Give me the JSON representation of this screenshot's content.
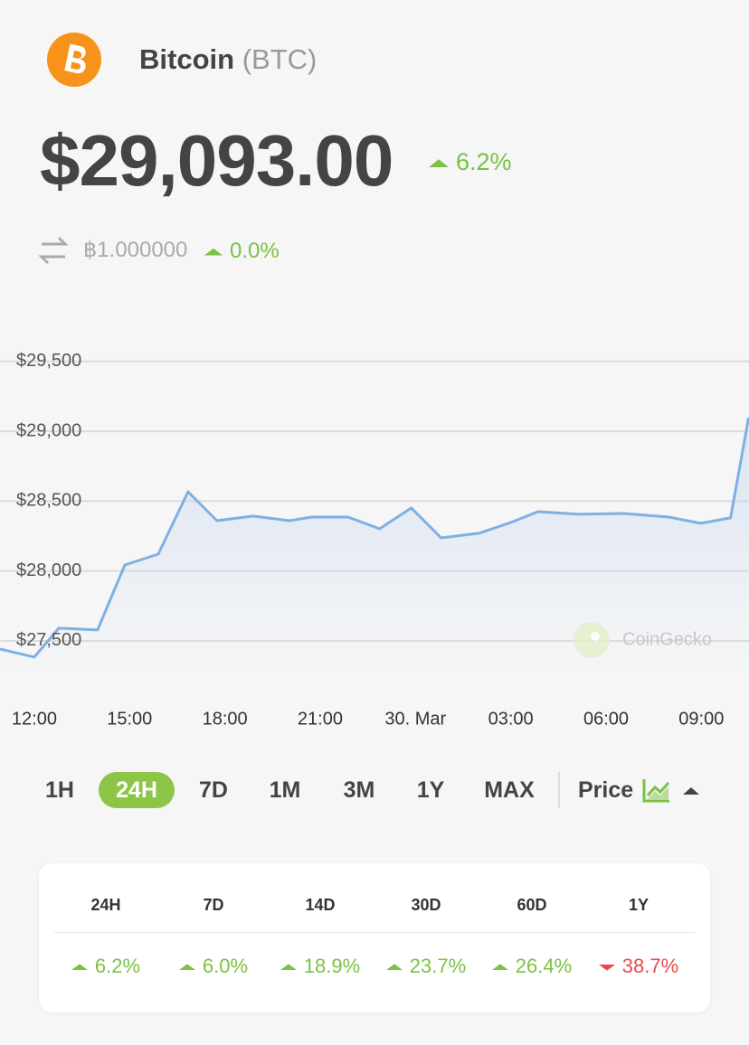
{
  "header": {
    "coin_name": "Bitcoin",
    "symbol": "(BTC)",
    "price": "$29,093.00",
    "price_change": "6.2%",
    "price_change_direction": "up",
    "btc_price": "฿1.000000",
    "btc_change": "0.0%",
    "btc_change_direction": "up"
  },
  "chart_data": {
    "type": "line",
    "x": [
      -1.08,
      0,
      0.77,
      1.99,
      2.85,
      3.9,
      4.84,
      5.75,
      6.89,
      8.03,
      8.74,
      9.88,
      10.87,
      11.87,
      12.81,
      14.0,
      15.0,
      15.86,
      17.14,
      18.56,
      19.98,
      20.98,
      21.92,
      22.49
    ],
    "values": [
      27442,
      27384,
      27591,
      27578,
      28043,
      28121,
      28567,
      28360,
      28393,
      28360,
      28386,
      28386,
      28302,
      28451,
      28237,
      28270,
      28347,
      28425,
      28406,
      28412,
      28386,
      28341,
      28380,
      29098
    ],
    "color": "#7fb0e3",
    "area": true,
    "xlim": [
      -1.08,
      22.5
    ],
    "xticks": [
      {
        "value": 0,
        "label": "12:00"
      },
      {
        "value": 3,
        "label": "15:00"
      },
      {
        "value": 6,
        "label": "18:00"
      },
      {
        "value": 9,
        "label": "21:00"
      },
      {
        "value": 12,
        "label": "30. Mar"
      },
      {
        "value": 15,
        "label": "03:00"
      },
      {
        "value": 18,
        "label": "06:00"
      },
      {
        "value": 21,
        "label": "09:00"
      }
    ],
    "ylim": [
      27250,
      29650
    ],
    "yticks": [
      {
        "value": 27500,
        "label": "$27,500"
      },
      {
        "value": 28000,
        "label": "$28,000"
      },
      {
        "value": 28500,
        "label": "$28,500"
      },
      {
        "value": 29000,
        "label": "$29,000"
      },
      {
        "value": 29500,
        "label": "$29,500"
      }
    ],
    "grid": true,
    "watermark": "CoinGecko"
  },
  "range_buttons": {
    "options": [
      "1H",
      "24H",
      "7D",
      "1M",
      "3M",
      "1Y",
      "MAX"
    ],
    "selected": "24H",
    "mode": "Price"
  },
  "changes_table": {
    "headers": [
      "24H",
      "7D",
      "14D",
      "30D",
      "60D",
      "1Y"
    ],
    "values": [
      "6.2%",
      "6.0%",
      "18.9%",
      "23.7%",
      "26.4%",
      "38.7%"
    ],
    "directions": [
      "up",
      "up",
      "up",
      "up",
      "up",
      "down"
    ]
  }
}
